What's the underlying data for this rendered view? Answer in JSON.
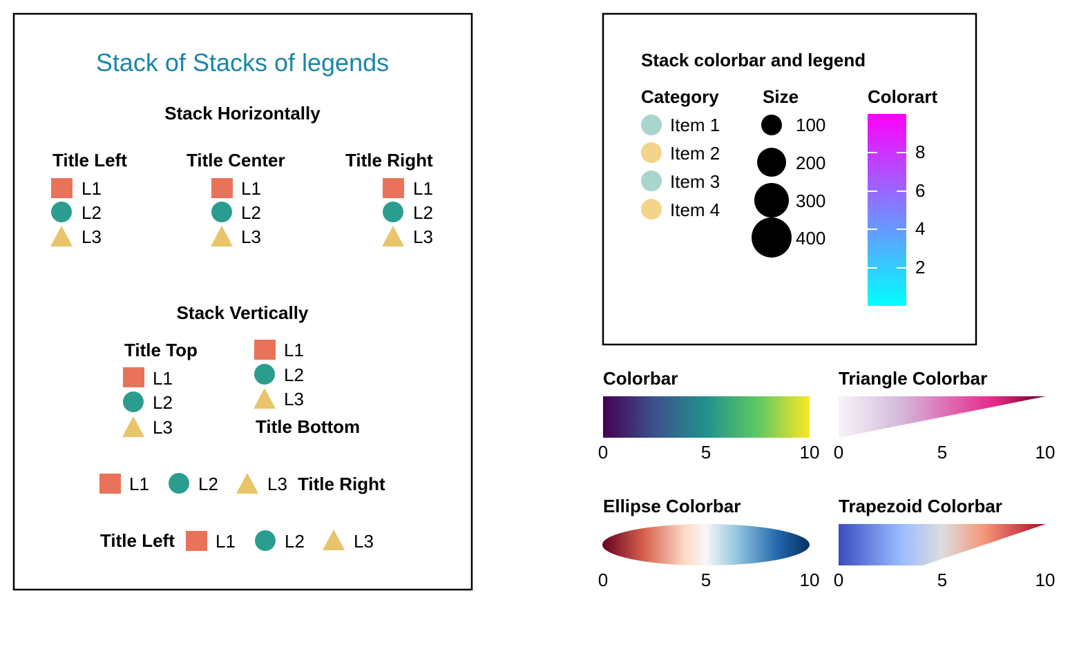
{
  "colors": {
    "square": "#e8735a",
    "circle": "#2a9d8f",
    "triangle": "#e9c46a",
    "title_blue": "#1a86a8",
    "cat_teal": "#a8d5ce",
    "cat_yellow": "#f3d48a"
  },
  "left_panel": {
    "title": "Stack of Stacks of legends",
    "horizontal": {
      "heading": "Stack Horizontally",
      "groups": [
        {
          "title": "Title Left",
          "items": [
            "L1",
            "L2",
            "L3"
          ]
        },
        {
          "title": "Title Center",
          "items": [
            "L1",
            "L2",
            "L3"
          ]
        },
        {
          "title": "Title Right",
          "items": [
            "L1",
            "L2",
            "L3"
          ]
        }
      ]
    },
    "vertical": {
      "heading": "Stack Vertically",
      "groups": [
        {
          "title": "Title Top",
          "items": [
            "L1",
            "L2",
            "L3"
          ]
        },
        {
          "title": "Title Bottom",
          "items": [
            "L1",
            "L2",
            "L3"
          ]
        }
      ]
    },
    "row_title_right": {
      "title": "Title Right",
      "items": [
        "L1",
        "L2",
        "L3"
      ]
    },
    "row_title_left": {
      "title": "Title Left",
      "items": [
        "L1",
        "L2",
        "L3"
      ]
    }
  },
  "right_panel": {
    "title": "Stack colorbar and legend",
    "category": {
      "title": "Category",
      "items": [
        "Item 1",
        "Item 2",
        "Item 3",
        "Item 4"
      ]
    },
    "size": {
      "title": "Size",
      "items": [
        "100",
        "200",
        "300",
        "400"
      ]
    },
    "colorart": {
      "title": "Colorart",
      "ticks": [
        "8",
        "6",
        "4",
        "2"
      ],
      "colors": [
        "#ff00ff",
        "#00ffff"
      ]
    }
  },
  "colorbars": [
    {
      "title": "Colorbar",
      "ticks": [
        "0",
        "5",
        "10"
      ]
    },
    {
      "title": "Triangle Colorbar",
      "ticks": [
        "0",
        "5",
        "10"
      ]
    },
    {
      "title": "Ellipse Colorbar",
      "ticks": [
        "0",
        "5",
        "10"
      ]
    },
    {
      "title": "Trapezoid Colorbar",
      "ticks": [
        "0",
        "5",
        "10"
      ]
    }
  ]
}
